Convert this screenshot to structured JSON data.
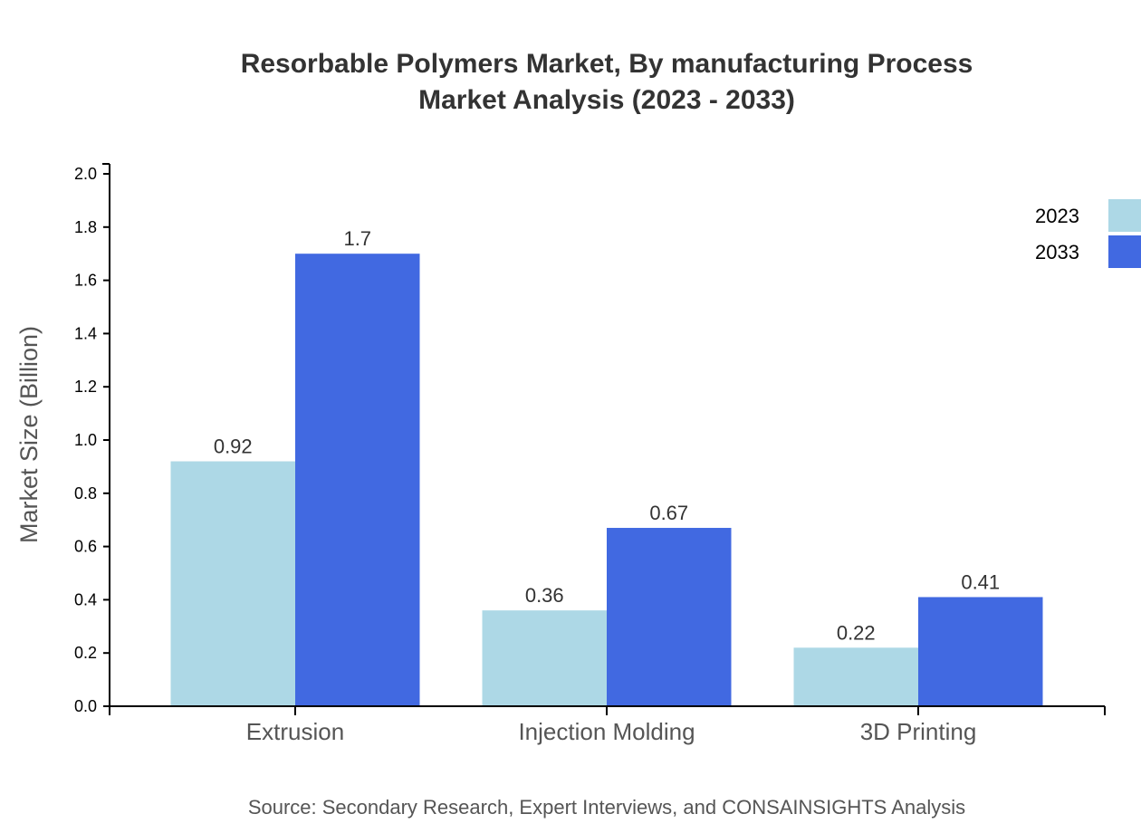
{
  "chart_data": {
    "type": "bar",
    "title": "Resorbable Polymers Market, By manufacturing Process",
    "subtitle": "Market Analysis (2023 - 2033)",
    "xlabel": "",
    "ylabel": "Market Size (Billion)",
    "ylim": [
      0,
      2.0
    ],
    "yticks": [
      "0.0",
      "0.2",
      "0.4",
      "0.6",
      "0.8",
      "1.0",
      "1.2",
      "1.4",
      "1.6",
      "1.8",
      "2.0"
    ],
    "categories": [
      "Extrusion",
      "Injection Molding",
      "3D Printing"
    ],
    "series": [
      {
        "name": "2023",
        "color": "#ADD8E6",
        "values": [
          0.92,
          0.36,
          0.22
        ]
      },
      {
        "name": "2033",
        "color": "#4169E1",
        "values": [
          1.7,
          0.67,
          0.41
        ]
      }
    ],
    "legend_position": "top-right",
    "grid": false,
    "source": "Source: Secondary Research, Expert Interviews, and CONSAINSIGHTS Analysis"
  }
}
